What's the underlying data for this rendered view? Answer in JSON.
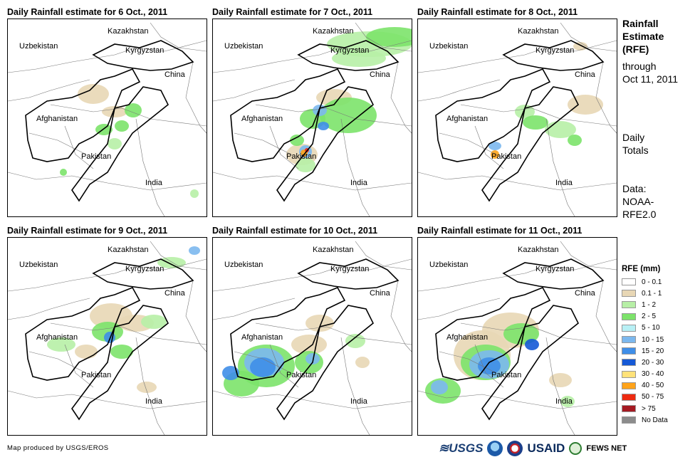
{
  "panels": [
    {
      "title": "Daily Rainfall estimate for 6 Oct., 2011"
    },
    {
      "title": "Daily Rainfall estimate for 7 Oct., 2011"
    },
    {
      "title": "Daily Rainfall estimate for 8 Oct., 2011"
    },
    {
      "title": "Daily Rainfall estimate for 9 Oct., 2011"
    },
    {
      "title": "Daily Rainfall estimate for 10 Oct., 2011"
    },
    {
      "title": "Daily Rainfall estimate for 11 Oct., 2011"
    }
  ],
  "map_labels": {
    "kazakhstan": "Kazakhstan",
    "uzbekistan": "Uzbekistan",
    "kyrgyzstan": "Kyrgyzstan",
    "china": "China",
    "afghanistan": "Afghanistan",
    "pakistan": "Pakistan",
    "india": "India"
  },
  "side": {
    "title_lines": [
      "Rainfall",
      "Estimate",
      "(RFE)"
    ],
    "through": "through",
    "date": "Oct 11, 2011",
    "daily": "Daily",
    "totals": "Totals",
    "data_label": "Data:",
    "data_src1": "NOAA-",
    "data_src2": "RFE2.0"
  },
  "legend": {
    "title": "RFE (mm)",
    "items": [
      {
        "label": "0 - 0.1",
        "color": "#ffffff"
      },
      {
        "label": "0.1 - 1",
        "color": "#e8d7b5"
      },
      {
        "label": "1 - 2",
        "color": "#b7efa6"
      },
      {
        "label": "2 - 5",
        "color": "#7ce36a"
      },
      {
        "label": "5 - 10",
        "color": "#b8f0f5"
      },
      {
        "label": "10 - 15",
        "color": "#7cb8ee"
      },
      {
        "label": "15 - 20",
        "color": "#3f8ee8"
      },
      {
        "label": "20 - 30",
        "color": "#1559d6"
      },
      {
        "label": "30 - 40",
        "color": "#ffe27a"
      },
      {
        "label": "40 - 50",
        "color": "#ffa31a"
      },
      {
        "label": "50 - 75",
        "color": "#ee2a10"
      },
      {
        "label": "> 75",
        "color": "#a51a22"
      },
      {
        "label": "No Data",
        "color": "#8c8c8c"
      }
    ]
  },
  "footer": {
    "credit": "Map produced by USGS/EROS",
    "logos": {
      "usgs": "USGS",
      "usaid": "USAID",
      "fews": "FEWS NET"
    }
  }
}
